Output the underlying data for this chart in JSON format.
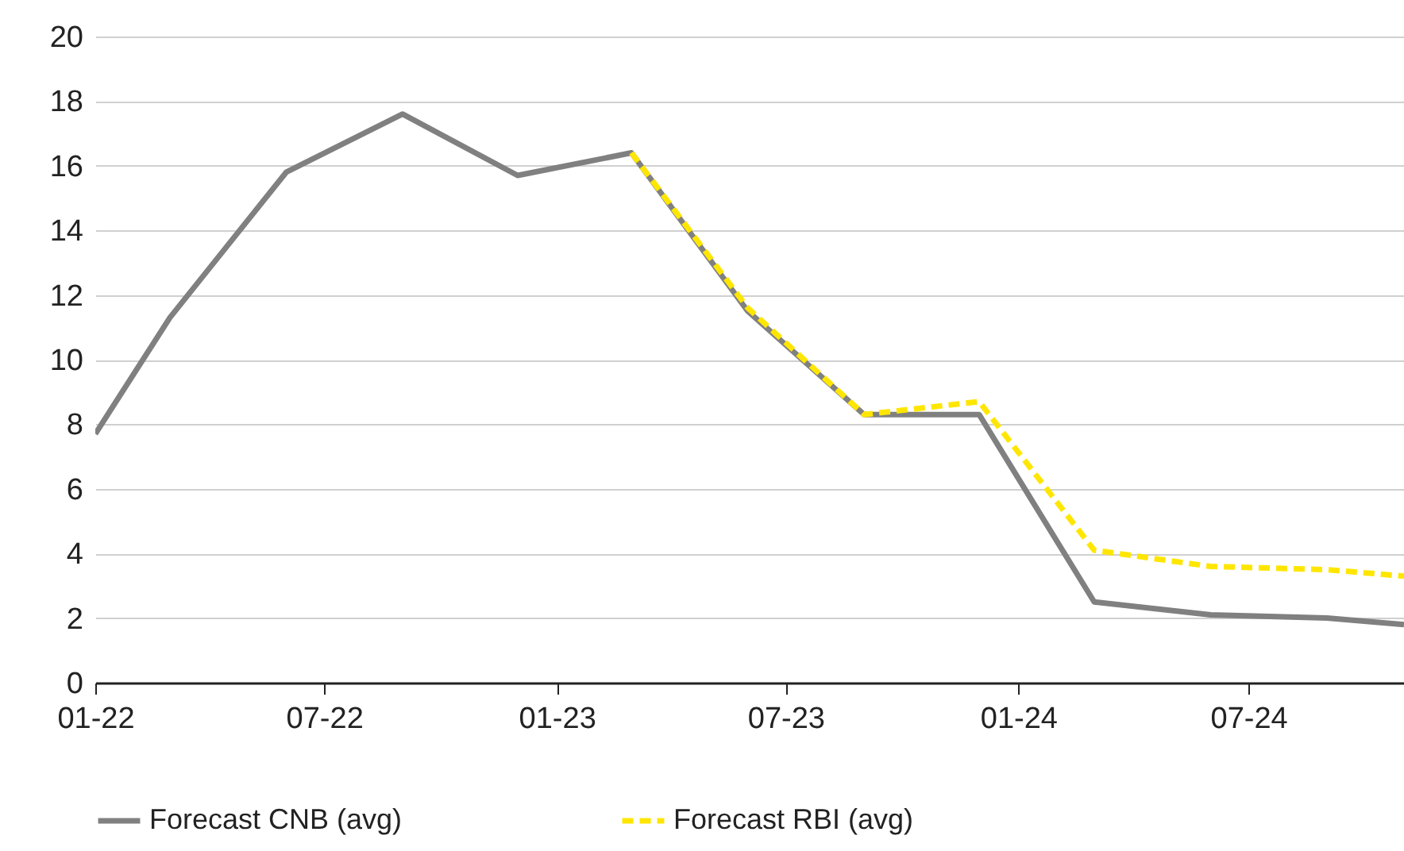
{
  "chart_data": {
    "type": "line",
    "x": [
      "2022-01",
      "2022-03",
      "2022-06",
      "2022-09",
      "2022-12",
      "2023-03",
      "2023-06",
      "2023-09",
      "2023-12",
      "2024-03",
      "2024-06",
      "2024-09",
      "2024-11"
    ],
    "series": [
      {
        "name": "Forecast CNB (avg)",
        "color": "#808080",
        "line_style": "solid",
        "values": [
          7.7,
          11.3,
          15.8,
          17.6,
          15.7,
          16.4,
          11.5,
          8.3,
          8.3,
          2.5,
          2.1,
          2.0,
          1.8
        ]
      },
      {
        "name": "Forecast RBI (avg)",
        "color": "#ffe600",
        "line_style": "dashed",
        "values": [
          null,
          null,
          null,
          null,
          null,
          16.4,
          11.6,
          8.3,
          8.7,
          4.1,
          3.6,
          3.5,
          3.3
        ]
      }
    ],
    "xlim": [
      "2022-01",
      "2024-11"
    ],
    "xticks": [
      {
        "value": "2022-01",
        "label": "01-22"
      },
      {
        "value": "2022-07",
        "label": "07-22"
      },
      {
        "value": "2023-01",
        "label": "01-23"
      },
      {
        "value": "2023-07",
        "label": "07-23"
      },
      {
        "value": "2024-01",
        "label": "01-24"
      },
      {
        "value": "2024-07",
        "label": "07-24"
      }
    ],
    "ylim": [
      0,
      20
    ],
    "yticks": [
      0,
      2,
      4,
      6,
      8,
      10,
      12,
      14,
      16,
      18,
      20
    ],
    "grid": "y",
    "legend": "bottom",
    "marker": "none"
  }
}
